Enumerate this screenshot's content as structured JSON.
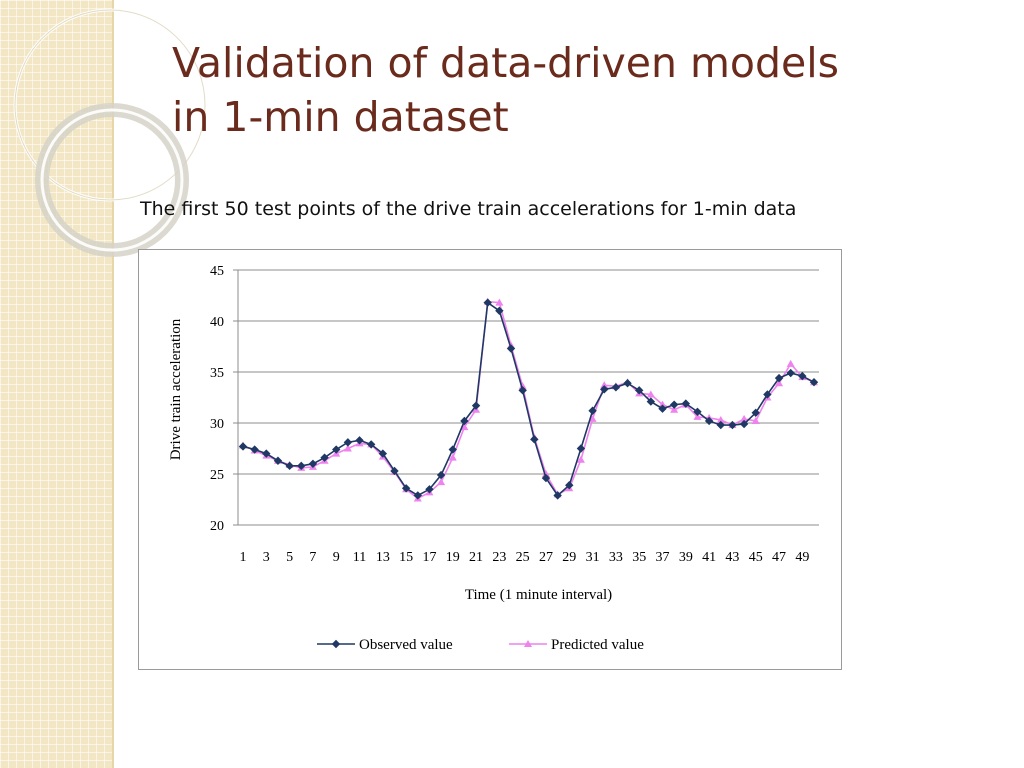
{
  "slide": {
    "title_line1": "Validation of data-driven models",
    "title_line2": "in 1-min dataset",
    "subtitle": "The first 50 test points of the drive train accelerations for 1-min data",
    "title_color": "#6a2a1c",
    "sidebar_color": "#f2e6c4"
  },
  "chart_data": {
    "type": "line",
    "title": "",
    "xlabel": "Time (1 minute interval)",
    "ylabel": "Drive train acceleration",
    "ylim": [
      20,
      45
    ],
    "yticks": [
      20,
      25,
      30,
      35,
      40,
      45
    ],
    "x": [
      1,
      2,
      3,
      4,
      5,
      6,
      7,
      8,
      9,
      10,
      11,
      12,
      13,
      14,
      15,
      16,
      17,
      18,
      19,
      20,
      21,
      22,
      23,
      24,
      25,
      26,
      27,
      28,
      29,
      30,
      31,
      32,
      33,
      34,
      35,
      36,
      37,
      38,
      39,
      40,
      41,
      42,
      43,
      44,
      45,
      46,
      47,
      48,
      49,
      50
    ],
    "xtick_labels": [
      "1",
      "3",
      "5",
      "7",
      "9",
      "11",
      "13",
      "15",
      "17",
      "19",
      "21",
      "23",
      "25",
      "27",
      "29",
      "31",
      "33",
      "35",
      "37",
      "39",
      "41",
      "43",
      "45",
      "47",
      "49"
    ],
    "grid": "horizontal",
    "legend_position": "bottom",
    "series": [
      {
        "name": "Observed value",
        "color": "#1f3864",
        "marker": "diamond",
        "values": [
          27.7,
          27.4,
          27.0,
          26.3,
          25.8,
          25.8,
          26.0,
          26.6,
          27.4,
          28.1,
          28.3,
          27.9,
          27.0,
          25.3,
          23.6,
          22.9,
          23.5,
          24.9,
          27.4,
          30.2,
          31.7,
          41.8,
          41.0,
          37.3,
          33.2,
          28.4,
          24.6,
          22.9,
          23.9,
          27.5,
          31.2,
          33.3,
          33.5,
          33.9,
          33.2,
          32.1,
          31.4,
          31.8,
          31.9,
          31.1,
          30.2,
          29.8,
          29.8,
          29.9,
          31.0,
          32.8,
          34.4,
          34.9,
          34.6,
          34.0
        ]
      },
      {
        "name": "Predicted value",
        "color": "#ee82ee",
        "marker": "triangle",
        "values": [
          27.8,
          27.3,
          26.8,
          26.3,
          25.9,
          25.6,
          25.7,
          26.3,
          27.0,
          27.5,
          28.0,
          27.9,
          26.7,
          25.2,
          23.5,
          22.6,
          23.2,
          24.2,
          26.6,
          29.6,
          31.3,
          41.9,
          41.8,
          37.6,
          33.6,
          28.6,
          25.0,
          23.0,
          23.6,
          26.4,
          30.4,
          33.7,
          33.6,
          34.0,
          32.9,
          32.8,
          31.8,
          31.3,
          31.8,
          30.6,
          30.5,
          30.3,
          29.8,
          30.4,
          30.2,
          32.5,
          33.9,
          35.8,
          34.5,
          34.0
        ]
      }
    ]
  }
}
